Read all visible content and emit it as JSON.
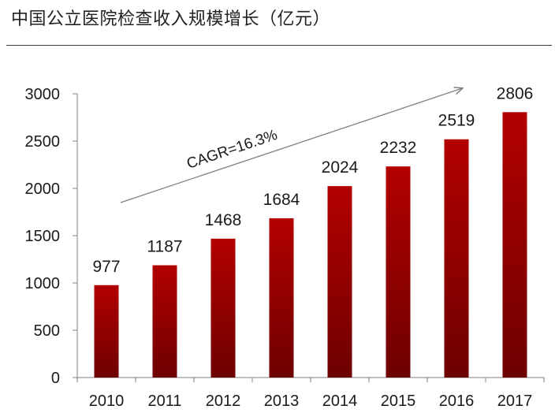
{
  "title": "中国公立医院检查收入规模增长（亿元）",
  "colors": {
    "bar_top": "#b30000",
    "bar_bottom": "#6e0000",
    "axis": "#7f7f7f",
    "trend_arrow": "#808080",
    "text": "#1a1a1a"
  },
  "chart_data": {
    "type": "bar",
    "title": "中国公立医院检查收入规模增长（亿元）",
    "xlabel": "",
    "ylabel": "",
    "categories": [
      "2010",
      "2011",
      "2012",
      "2013",
      "2014",
      "2015",
      "2016",
      "2017"
    ],
    "values": [
      977,
      1187,
      1468,
      1684,
      2024,
      2232,
      2519,
      2806
    ],
    "ylim": [
      0,
      3000
    ],
    "yticks": [
      0,
      500,
      1000,
      1500,
      2000,
      2500,
      3000
    ],
    "grid": false,
    "data_labels": true,
    "annotation": {
      "text": "CAGR=16.3%",
      "type": "trend-arrow",
      "from": {
        "x": "2010",
        "y": 1850
      },
      "to": {
        "x": "2016",
        "y": 3060
      }
    }
  }
}
